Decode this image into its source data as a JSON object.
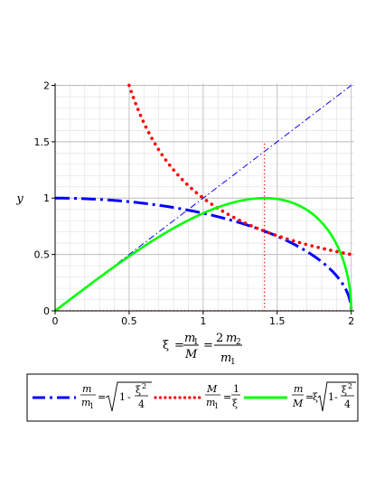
{
  "chart_data": {
    "type": "line",
    "title": "",
    "ylabel": "y",
    "xlabel": {
      "lhs": "ξ",
      "eq": "=",
      "frac1_num": "m",
      "frac1_num_sub": "1",
      "frac1_den": "M",
      "eq2": "=",
      "frac2_num_coef": "2",
      "frac2_num": "m",
      "frac2_num_sub": "2",
      "frac2_den": "m",
      "frac2_den_sub": "1"
    },
    "xlim": [
      0,
      2.02
    ],
    "ylim": [
      0,
      2.02
    ],
    "x_ticks": [
      0,
      0.5,
      1,
      1.5,
      2
    ],
    "x_tick_labels": [
      "0",
      "0.5",
      "1",
      "1.5",
      "2"
    ],
    "y_ticks": [
      0,
      0.5,
      1,
      1.5,
      2
    ],
    "y_tick_labels": [
      "0",
      "0.5",
      "1",
      "1.5",
      "2"
    ],
    "grid": true,
    "legend_position": "bottom",
    "series": [
      {
        "color": "#0000ff",
        "style": "dash-dot",
        "formula": "sqrt(1 - x^2/4)",
        "x": [
          0,
          0.25,
          0.5,
          0.75,
          1,
          1.25,
          1.414,
          1.5,
          1.75,
          1.9,
          2
        ],
        "y": [
          1,
          0.992,
          0.968,
          0.927,
          0.866,
          0.781,
          0.707,
          0.661,
          0.484,
          0.312,
          0
        ],
        "legend": {
          "num": "m",
          "den": "m",
          "den_sub": "1",
          "eq": "=",
          "rad_one": "1",
          "rad_minus": "-",
          "rad_num": "ξ",
          "rad_num_sup": "2",
          "rad_den": "4"
        }
      },
      {
        "color": "#ff0000",
        "style": "dotted",
        "formula": "1/x",
        "x": [
          0.5,
          0.75,
          1,
          1.25,
          1.414,
          1.5,
          1.75,
          2
        ],
        "y": [
          2,
          1.333,
          1,
          0.8,
          0.707,
          0.667,
          0.571,
          0.5
        ],
        "legend": {
          "num": "M",
          "den": "m",
          "den_sub": "1",
          "eq": "=",
          "rhs_num": "1",
          "rhs_den": "ξ"
        }
      },
      {
        "color": "#00ff00",
        "style": "solid",
        "formula": "x*sqrt(1 - x^2/4)",
        "x": [
          0,
          0.25,
          0.5,
          0.75,
          1,
          1.25,
          1.414,
          1.5,
          1.75,
          1.9,
          2
        ],
        "y": [
          0,
          0.248,
          0.484,
          0.695,
          0.866,
          0.976,
          1,
          0.992,
          0.847,
          0.593,
          0
        ],
        "legend": {
          "num": "m",
          "den": "M",
          "eq": "=",
          "coef": "ξ",
          "rad_one": "1",
          "rad_minus": "-",
          "rad_num": "ξ",
          "rad_num_sup": "2",
          "rad_den": "4"
        }
      }
    ],
    "reference_lines": [
      {
        "color": "#0000ff",
        "style": "dash-dot",
        "formula": "y = x",
        "x": [
          0,
          2
        ],
        "y": [
          0,
          2
        ]
      },
      {
        "color": "#ff0000",
        "style": "dotted",
        "formula": "x = sqrt(2)",
        "x": [
          1.414,
          1.414
        ],
        "y": [
          0,
          1.5
        ]
      },
      {
        "color": "#ff0000",
        "style": "dotted",
        "formula": "y = 0",
        "x": [
          0,
          2
        ],
        "y": [
          0,
          0
        ]
      }
    ]
  }
}
